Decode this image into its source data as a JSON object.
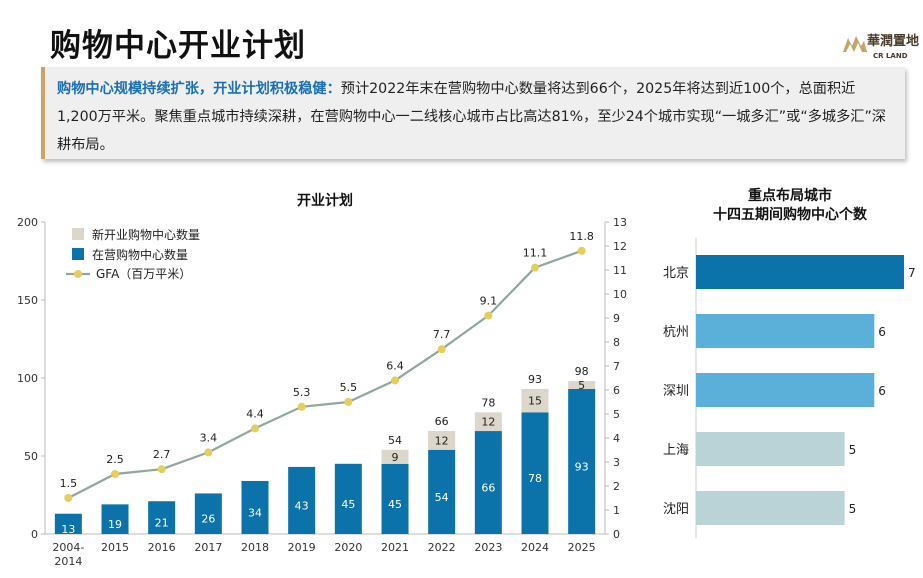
{
  "page": {
    "title": "购物中心开业计划",
    "logo_text": "華潤置地",
    "logo_sub": "CR LAND"
  },
  "summary": {
    "highlight": "购物中心规模持续扩张，开业计划积极稳健：",
    "body": "预计2022年末在营购物中心数量将达到66个，2025年将达到近100个，总面积近1,200万平米。聚焦重点城市持续深耕，在营购物中心一二线核心城市占比高达81%，至少24个城市实现“一城多汇”或“多城多汇”深耕布局。"
  },
  "colors": {
    "operating": "#0b73a9",
    "new_opening": "#dcd6cb",
    "gfa_line": "#8fa89a",
    "gfa_marker": "#e4cf5a",
    "city_top": "#0b73a9",
    "city_mid": "#5bb0da",
    "city_low": "#b9d3d7",
    "accent": "#c8a46b",
    "highlight_text": "#1a6fb5"
  },
  "chart_data": [
    {
      "type": "bar",
      "title": "开业计划",
      "categories": [
        "2004-2014",
        "2015",
        "2016",
        "2017",
        "2018",
        "2019",
        "2020",
        "2021",
        "2022",
        "2023",
        "2024",
        "2025"
      ],
      "series": [
        {
          "name": "在营购物中心数量",
          "values": [
            13,
            19,
            21,
            26,
            34,
            43,
            45,
            45,
            54,
            66,
            78,
            93
          ]
        },
        {
          "name": "新开业购物中心数量",
          "values": [
            null,
            null,
            null,
            null,
            null,
            null,
            null,
            9,
            12,
            12,
            15,
            5
          ]
        },
        {
          "name": "GFA（百万平米）",
          "type": "line",
          "axis": "right",
          "values": [
            1.5,
            2.5,
            2.7,
            3.4,
            4.4,
            5.3,
            5.5,
            6.4,
            7.7,
            9.1,
            11.1,
            11.8
          ]
        }
      ],
      "stack_totals": [
        null,
        null,
        null,
        null,
        null,
        null,
        null,
        54,
        66,
        78,
        93,
        98
      ],
      "ylim": [
        0,
        200
      ],
      "yticks": [
        0,
        50,
        100,
        150,
        200
      ],
      "y2lim": [
        0,
        13
      ],
      "y2ticks": [
        0,
        1,
        2,
        3,
        4,
        5,
        6,
        7,
        8,
        9,
        10,
        11,
        12,
        13
      ],
      "legend_position": "top-left",
      "grid": false
    },
    {
      "type": "bar",
      "orientation": "horizontal",
      "title": "重点布局城市",
      "subtitle": "十四五期间购物中心个数",
      "categories": [
        "北京",
        "杭州",
        "深圳",
        "上海",
        "沈阳"
      ],
      "values": [
        7,
        6,
        6,
        5,
        5
      ],
      "xlim": [
        0,
        7
      ],
      "grid": false
    }
  ]
}
